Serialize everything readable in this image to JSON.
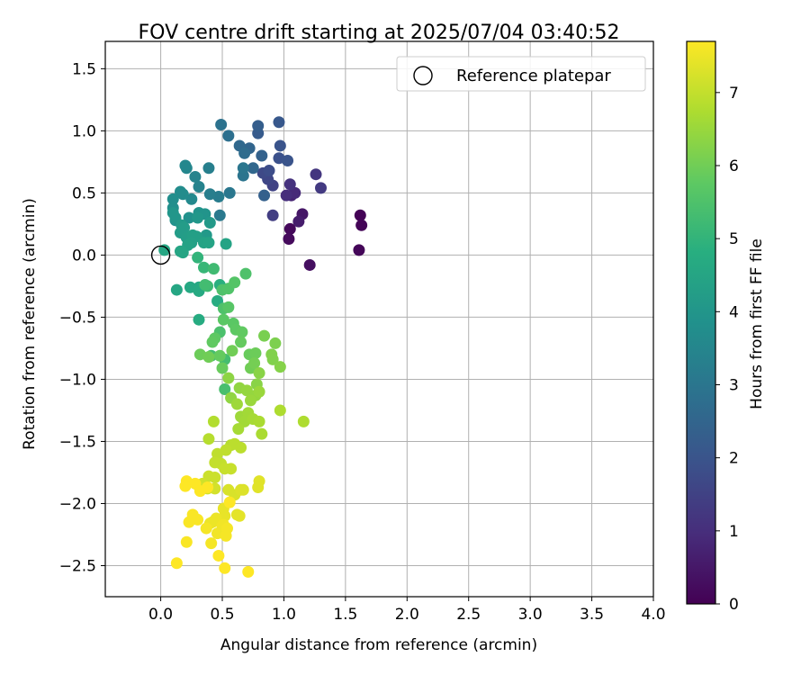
{
  "chart_data": {
    "type": "scatter",
    "title": "FOV centre drift starting at 2025/07/04 03:40:52",
    "xlabel": "Angular distance from reference (arcmin)",
    "ylabel": "Rotation from reference (arcmin)",
    "xlim": [
      -0.45,
      4.0
    ],
    "ylim": [
      -2.75,
      1.72
    ],
    "x_ticks": [
      0.0,
      0.5,
      1.0,
      1.5,
      2.0,
      2.5,
      3.0,
      3.5,
      4.0
    ],
    "x_tick_labels": [
      "0.0",
      "0.5",
      "1.0",
      "1.5",
      "2.0",
      "2.5",
      "3.0",
      "3.5",
      "4.0"
    ],
    "y_ticks": [
      1.5,
      1.0,
      0.5,
      0.0,
      -0.5,
      -1.0,
      -1.5,
      -2.0,
      -2.5
    ],
    "y_tick_labels": [
      "1.5",
      "1.0",
      "0.5",
      "0.0",
      "−0.5",
      "−1.0",
      "−1.5",
      "−2.0",
      "−2.5"
    ],
    "grid": true,
    "legend": {
      "placement": "top-right",
      "entries": [
        {
          "label": "Reference platepar",
          "marker": "open-circle"
        }
      ]
    },
    "reference_point": {
      "x": 0.0,
      "y": 0.0
    },
    "colorbar": {
      "label": "Hours from first FF file",
      "colormap": "viridis",
      "range": [
        0,
        7.7
      ],
      "ticks": [
        0,
        1,
        2,
        3,
        4,
        5,
        6,
        7
      ],
      "tick_labels": [
        "0",
        "1",
        "2",
        "3",
        "4",
        "5",
        "6",
        "7"
      ]
    },
    "series": [
      {
        "color_values_unit": "hours",
        "points": [
          [
            1.62,
            0.32,
            0.05
          ],
          [
            1.63,
            0.24,
            0.08
          ],
          [
            1.61,
            0.04,
            0.1
          ],
          [
            1.05,
            0.21,
            0.15
          ],
          [
            1.04,
            0.13,
            0.2
          ],
          [
            1.21,
            -0.08,
            0.3
          ],
          [
            1.15,
            0.33,
            0.45
          ],
          [
            1.12,
            0.27,
            0.6
          ],
          [
            1.06,
            0.48,
            0.75
          ],
          [
            1.09,
            0.5,
            0.9
          ],
          [
            1.02,
            0.48,
            1.0
          ],
          [
            1.05,
            0.57,
            1.1
          ],
          [
            1.26,
            0.65,
            1.2
          ],
          [
            1.3,
            0.54,
            1.3
          ],
          [
            0.91,
            0.32,
            1.4
          ],
          [
            0.91,
            0.56,
            1.5
          ],
          [
            0.87,
            0.61,
            1.6
          ],
          [
            0.83,
            0.66,
            1.7
          ],
          [
            0.88,
            0.68,
            1.8
          ],
          [
            0.96,
            0.78,
            1.9
          ],
          [
            0.97,
            0.88,
            2.0
          ],
          [
            1.03,
            0.76,
            2.0
          ],
          [
            0.96,
            1.07,
            2.1
          ],
          [
            0.79,
            0.98,
            2.2
          ],
          [
            0.79,
            1.04,
            2.3
          ],
          [
            0.84,
            0.48,
            2.35
          ],
          [
            0.82,
            0.8,
            2.4
          ],
          [
            0.72,
            0.86,
            2.5
          ],
          [
            0.75,
            0.7,
            2.55
          ],
          [
            0.64,
            0.88,
            2.6
          ],
          [
            0.68,
            0.82,
            2.7
          ],
          [
            0.55,
            0.96,
            2.8
          ],
          [
            0.49,
            1.05,
            2.9
          ],
          [
            0.67,
            0.64,
            2.95
          ],
          [
            0.67,
            0.7,
            3.0
          ],
          [
            0.56,
            0.5,
            3.05
          ],
          [
            0.48,
            0.32,
            3.1
          ],
          [
            0.47,
            0.47,
            3.2
          ],
          [
            0.4,
            0.49,
            3.25
          ],
          [
            0.39,
            0.7,
            3.3
          ],
          [
            0.31,
            0.55,
            3.4
          ],
          [
            0.28,
            0.63,
            3.45
          ],
          [
            0.21,
            0.7,
            3.5
          ],
          [
            0.2,
            0.72,
            3.55
          ],
          [
            0.25,
            0.45,
            3.6
          ],
          [
            0.18,
            0.49,
            3.7
          ],
          [
            0.16,
            0.51,
            3.7
          ],
          [
            0.1,
            0.45,
            3.75
          ],
          [
            0.1,
            0.38,
            3.8
          ],
          [
            0.12,
            0.28,
            3.85
          ],
          [
            0.23,
            0.3,
            3.85
          ],
          [
            0.31,
            0.34,
            3.9
          ],
          [
            0.36,
            0.33,
            3.95
          ],
          [
            0.1,
            0.34,
            4.0
          ],
          [
            0.12,
            0.3,
            4.0
          ],
          [
            0.3,
            0.3,
            4.05
          ],
          [
            0.4,
            0.26,
            4.1
          ],
          [
            0.37,
            0.16,
            4.1
          ],
          [
            0.17,
            0.24,
            4.15
          ],
          [
            0.19,
            0.22,
            4.2
          ],
          [
            0.16,
            0.18,
            4.2
          ],
          [
            0.21,
            0.14,
            4.25
          ],
          [
            0.26,
            0.16,
            4.3
          ],
          [
            0.29,
            0.15,
            4.3
          ],
          [
            0.25,
            0.1,
            4.35
          ],
          [
            0.22,
            0.08,
            4.4
          ],
          [
            0.35,
            0.1,
            4.4
          ],
          [
            0.39,
            0.1,
            4.45
          ],
          [
            0.53,
            0.09,
            4.45
          ],
          [
            0.16,
            0.03,
            4.5
          ],
          [
            0.18,
            0.02,
            4.5
          ],
          [
            0.03,
            0.04,
            4.55
          ],
          [
            0.13,
            -0.28,
            4.55
          ],
          [
            0.24,
            -0.26,
            4.6
          ],
          [
            0.31,
            -0.26,
            4.6
          ],
          [
            0.31,
            -0.29,
            4.65
          ],
          [
            0.31,
            -0.52,
            4.7
          ],
          [
            0.46,
            -0.37,
            4.75
          ],
          [
            0.48,
            -0.24,
            4.85
          ],
          [
            0.3,
            -0.02,
            5.0
          ],
          [
            0.35,
            -0.1,
            5.1
          ],
          [
            0.38,
            -0.25,
            5.2
          ],
          [
            0.43,
            -0.11,
            5.25
          ],
          [
            0.36,
            -0.24,
            5.3
          ],
          [
            0.41,
            -0.81,
            5.3
          ],
          [
            0.52,
            -0.84,
            5.35
          ],
          [
            0.52,
            -1.08,
            5.4
          ],
          [
            0.48,
            -0.62,
            5.45
          ],
          [
            0.5,
            -0.28,
            5.5
          ],
          [
            0.51,
            -0.43,
            5.5
          ],
          [
            0.55,
            -0.27,
            5.55
          ],
          [
            0.6,
            -0.22,
            5.6
          ],
          [
            0.55,
            -0.42,
            5.65
          ],
          [
            0.51,
            -0.52,
            5.7
          ],
          [
            0.44,
            -0.67,
            5.75
          ],
          [
            0.42,
            -0.7,
            5.8
          ],
          [
            0.48,
            -0.81,
            5.85
          ],
          [
            0.5,
            -0.91,
            5.9
          ],
          [
            0.32,
            -0.8,
            5.95
          ],
          [
            0.39,
            -0.82,
            6.0
          ],
          [
            0.59,
            -0.55,
            5.7
          ],
          [
            0.61,
            -0.6,
            5.75
          ],
          [
            0.66,
            -0.62,
            5.8
          ],
          [
            0.65,
            -0.7,
            5.85
          ],
          [
            0.58,
            -0.77,
            6.0
          ],
          [
            0.69,
            -0.15,
            5.5
          ],
          [
            0.72,
            -0.8,
            5.9
          ],
          [
            0.77,
            -0.79,
            5.95
          ],
          [
            0.73,
            -0.91,
            6.0
          ],
          [
            0.76,
            -0.87,
            6.05
          ],
          [
            0.84,
            -0.65,
            6.1
          ],
          [
            0.93,
            -0.71,
            6.15
          ],
          [
            0.9,
            -0.8,
            6.2
          ],
          [
            0.91,
            -0.84,
            6.2
          ],
          [
            0.97,
            -0.9,
            6.25
          ],
          [
            0.8,
            -0.95,
            6.3
          ],
          [
            0.78,
            -1.04,
            6.3
          ],
          [
            0.55,
            -0.99,
            6.35
          ],
          [
            0.57,
            -1.15,
            6.4
          ],
          [
            0.64,
            -1.07,
            6.4
          ],
          [
            0.7,
            -1.09,
            6.45
          ],
          [
            0.77,
            -1.13,
            6.45
          ],
          [
            0.8,
            -1.1,
            6.5
          ],
          [
            0.73,
            -1.17,
            6.5
          ],
          [
            0.62,
            -1.2,
            6.55
          ],
          [
            0.65,
            -1.3,
            6.55
          ],
          [
            0.71,
            -1.27,
            6.6
          ],
          [
            0.68,
            -1.34,
            6.6
          ],
          [
            0.63,
            -1.4,
            6.65
          ],
          [
            0.75,
            -1.32,
            6.65
          ],
          [
            0.8,
            -1.34,
            6.7
          ],
          [
            0.82,
            -1.44,
            6.7
          ],
          [
            0.97,
            -1.25,
            6.75
          ],
          [
            1.16,
            -1.34,
            6.75
          ],
          [
            0.43,
            -1.34,
            6.8
          ],
          [
            0.39,
            -1.48,
            6.85
          ],
          [
            0.57,
            -1.53,
            6.85
          ],
          [
            0.6,
            -1.52,
            6.9
          ],
          [
            0.65,
            -1.55,
            6.9
          ],
          [
            0.53,
            -1.57,
            6.95
          ],
          [
            0.46,
            -1.6,
            6.95
          ],
          [
            0.49,
            -1.68,
            7.0
          ],
          [
            0.44,
            -1.67,
            7.0
          ],
          [
            0.52,
            -1.72,
            7.05
          ],
          [
            0.57,
            -1.72,
            7.05
          ],
          [
            0.44,
            -1.79,
            7.1
          ],
          [
            0.39,
            -1.78,
            7.1
          ],
          [
            0.34,
            -1.84,
            7.15
          ],
          [
            0.3,
            -1.85,
            7.15
          ],
          [
            0.44,
            -1.88,
            7.2
          ],
          [
            0.38,
            -1.88,
            7.2
          ],
          [
            0.55,
            -1.89,
            7.25
          ],
          [
            0.6,
            -1.93,
            7.25
          ],
          [
            0.65,
            -1.89,
            7.3
          ],
          [
            0.67,
            -1.89,
            7.3
          ],
          [
            0.8,
            -1.82,
            7.35
          ],
          [
            0.79,
            -1.87,
            7.35
          ],
          [
            0.62,
            -2.09,
            7.4
          ],
          [
            0.64,
            -2.1,
            7.4
          ],
          [
            0.51,
            -2.04,
            7.45
          ],
          [
            0.52,
            -2.1,
            7.45
          ],
          [
            0.45,
            -2.12,
            7.5
          ],
          [
            0.42,
            -2.15,
            7.5
          ],
          [
            0.4,
            -2.16,
            7.5
          ],
          [
            0.51,
            -2.17,
            7.55
          ],
          [
            0.5,
            -2.18,
            7.55
          ],
          [
            0.46,
            -2.24,
            7.55
          ],
          [
            0.54,
            -2.2,
            7.6
          ],
          [
            0.53,
            -2.26,
            7.6
          ],
          [
            0.37,
            -2.2,
            7.6
          ],
          [
            0.41,
            -2.32,
            7.6
          ],
          [
            0.26,
            -2.09,
            7.65
          ],
          [
            0.3,
            -2.13,
            7.65
          ],
          [
            0.23,
            -2.15,
            7.65
          ],
          [
            0.21,
            -2.31,
            7.65
          ],
          [
            0.13,
            -2.48,
            7.7
          ],
          [
            0.47,
            -2.42,
            7.7
          ],
          [
            0.52,
            -2.52,
            7.7
          ],
          [
            0.71,
            -2.55,
            7.7
          ],
          [
            0.21,
            -1.82,
            7.7
          ],
          [
            0.2,
            -1.86,
            7.7
          ],
          [
            0.28,
            -1.84,
            7.7
          ],
          [
            0.32,
            -1.9,
            7.7
          ],
          [
            0.38,
            -1.87,
            7.7
          ],
          [
            0.56,
            -1.99,
            7.7
          ]
        ]
      }
    ]
  }
}
